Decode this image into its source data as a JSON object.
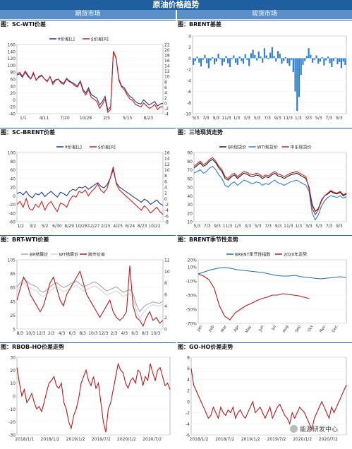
{
  "header": {
    "title": "原油价格趋势",
    "left": "期货市场",
    "right": "现货市场"
  },
  "watermark": "能源研发中心",
  "chart_data": [
    {
      "id": "c1",
      "type": "line",
      "title": "图：SC-WTI价差",
      "legend": [
        "¥价差[L]",
        "$价差[R]"
      ],
      "y_left_ticks": [
        160,
        140,
        120,
        100,
        80,
        60,
        40,
        20,
        0,
        -20,
        -40
      ],
      "y_right_ticks": [
        22,
        20,
        18,
        16,
        14,
        12,
        10,
        8,
        6,
        4,
        2,
        0,
        -2,
        -4
      ],
      "x_ticks": [
        "1/1",
        "4/11",
        "7/20",
        "10/28",
        "2/5",
        "5/15",
        "8/23"
      ],
      "series": [
        {
          "name": "¥价差[L]",
          "color": "#1f3a93",
          "axis": "left",
          "values": [
            72,
            75,
            65,
            80,
            68,
            60,
            75,
            58,
            65,
            70,
            60,
            55,
            66,
            50,
            58,
            60,
            52,
            48,
            62,
            55,
            50,
            45,
            40,
            55,
            30,
            20,
            35,
            15,
            10,
            5,
            -15,
            -5,
            10,
            -30,
            -20,
            138,
            120,
            60,
            40,
            35,
            20,
            10,
            5,
            -5,
            -10,
            -12,
            0,
            -8,
            -15,
            -10,
            -5,
            -18,
            -12,
            -10
          ]
        },
        {
          "name": "$价差[R]",
          "color": "#d22020",
          "axis": "right",
          "values": [
            11,
            11.5,
            10,
            12,
            10.5,
            9,
            11.5,
            8.5,
            10,
            10.5,
            9,
            8,
            10,
            7,
            8.5,
            9,
            7.5,
            7,
            9,
            8,
            7.5,
            6.5,
            6,
            8,
            4.5,
            3,
            5,
            2,
            1.5,
            0.5,
            -2,
            -0.5,
            1.5,
            -3.5,
            -2.5,
            19.5,
            17,
            8.5,
            6,
            5,
            3,
            1.5,
            1,
            -0.5,
            -1,
            -1.5,
            0,
            -1,
            -2,
            -1.5,
            -0.5,
            -2.5,
            -1.5,
            -1.5
          ]
        }
      ]
    },
    {
      "id": "c2",
      "type": "bar",
      "title": "图：BRENT基差",
      "y_ticks": [
        4,
        2,
        0,
        -2,
        -4,
        -6,
        -8,
        -10
      ],
      "x_ticks": [
        "5/3",
        "7/3",
        "9/3",
        "11/3",
        "1/3",
        "3/3",
        "5/3",
        "7/3",
        "9/3",
        "11/3",
        "1/3",
        "3/3",
        "5/3",
        "7/3",
        "9/3"
      ],
      "color": "#2f7fcf",
      "values": [
        -1.2,
        -0.5,
        0.3,
        -0.8,
        -1.5,
        -0.3,
        0.6,
        -0.9,
        -1.8,
        -0.4,
        0.2,
        -1.1,
        -0.6,
        0.8,
        -0.2,
        -1.3,
        -0.7,
        0.4,
        -0.9,
        -1.6,
        -0.2,
        0.5,
        -0.8,
        -1.2,
        0.3,
        -0.5,
        -1.0,
        0.7,
        -0.3,
        -1.4,
        0.9,
        1.5,
        0.6,
        -0.4,
        1.2,
        0.3,
        -0.8,
        1.8,
        0.5,
        -0.2,
        1.0,
        2.0,
        0.4,
        -0.6,
        1.3,
        0.8,
        -1.0,
        -0.5,
        0.2,
        -0.9,
        -1.4,
        -0.3,
        -2.5,
        -6.0,
        -9.5,
        -7.0,
        -3.0,
        -1.2,
        -0.5,
        0.4,
        1.8,
        0.6,
        -0.8,
        -0.3,
        0.5,
        -1.0,
        -0.6,
        0.2,
        -1.3,
        -0.4,
        0.3,
        -0.9,
        -1.6,
        -0.5,
        0.1,
        -1.1,
        -0.7,
        -1.8,
        -0.6,
        -1.2
      ]
    },
    {
      "id": "c3",
      "type": "line",
      "title": "图：SC-BRENT价差",
      "legend": [
        "¥价差[L]",
        "$价差[R]"
      ],
      "y_left_ticks": [
        100,
        80,
        60,
        40,
        20,
        0,
        -20,
        -40,
        -60
      ],
      "y_right_ticks": [
        16,
        14,
        12,
        10,
        8,
        6,
        4,
        2,
        0,
        -2,
        -4,
        -6,
        -8
      ],
      "x_ticks": [
        "1/2",
        "3/2",
        "5/2",
        "6/30",
        "8/29",
        "10/28",
        "12/27",
        "2/25",
        "4/25",
        "6/24",
        "8/23",
        "10/22"
      ],
      "series": [
        {
          "name": "¥价差[L]",
          "color": "#1f3a93",
          "axis": "left",
          "values": [
            5,
            8,
            2,
            10,
            0,
            -5,
            5,
            2,
            8,
            -2,
            5,
            10,
            3,
            -3,
            8,
            5,
            0,
            10,
            15,
            12,
            20,
            18,
            22,
            15,
            20,
            25,
            30,
            22,
            18,
            25,
            40,
            60,
            30,
            20,
            15,
            10,
            5,
            0,
            -5,
            -10,
            -15,
            -8,
            -12,
            -20,
            -15,
            -10,
            -18,
            -22
          ]
        },
        {
          "name": "$价差[R]",
          "color": "#d22020",
          "axis": "right",
          "values": [
            -2,
            -1,
            -3,
            0,
            -3.5,
            -4,
            -2,
            -3,
            -1,
            -4,
            -2,
            -1,
            -3,
            -4.5,
            -1.5,
            -2,
            -3,
            -0.5,
            1,
            0.5,
            2.5,
            2,
            3,
            1,
            2.5,
            3.5,
            5,
            3,
            2,
            3.5,
            7,
            11,
            5,
            3,
            2,
            1,
            0,
            -1,
            -2,
            -3,
            -4,
            -2.5,
            -3.5,
            -5,
            -4,
            -3,
            -4.5,
            -5.5
          ]
        }
      ]
    },
    {
      "id": "c4",
      "type": "line",
      "title": "图：三地现货走势",
      "legend": [
        "BR现货价",
        "WTI现货价",
        "中东现货价"
      ],
      "y_ticks": [
        90,
        80,
        70,
        60,
        50,
        40,
        30,
        20,
        10
      ],
      "x_ticks": [
        "5/3",
        "7/3",
        "9/3",
        "11/3",
        "1/3",
        "3/3",
        "5/3",
        "7/3",
        "9/3",
        "11/3",
        "1/3",
        "3/3",
        "5/3",
        "7/3",
        "9/3"
      ],
      "series": [
        {
          "name": "BR现货价",
          "color": "#1a1a1a",
          "values": [
            72,
            75,
            78,
            74,
            76,
            80,
            82,
            78,
            72,
            68,
            60,
            58,
            62,
            64,
            60,
            63,
            66,
            65,
            63,
            62,
            64,
            63,
            60,
            62,
            61,
            64,
            66,
            63,
            62,
            60,
            62,
            64,
            65,
            66,
            64,
            62,
            60,
            50,
            30,
            22,
            25,
            35,
            40,
            42,
            45,
            43,
            42,
            44,
            40,
            42
          ]
        },
        {
          "name": "WTI现货价",
          "color": "#2f7fcf",
          "values": [
            66,
            68,
            70,
            66,
            68,
            72,
            74,
            70,
            64,
            60,
            52,
            50,
            54,
            56,
            52,
            55,
            58,
            57,
            55,
            54,
            56,
            55,
            52,
            54,
            53,
            56,
            58,
            55,
            54,
            52,
            54,
            56,
            57,
            58,
            56,
            54,
            52,
            45,
            20,
            12,
            18,
            28,
            34,
            38,
            40,
            39,
            38,
            40,
            37,
            39
          ]
        },
        {
          "name": "中东现货价",
          "color": "#d22020",
          "values": [
            74,
            77,
            80,
            76,
            78,
            82,
            84,
            80,
            74,
            70,
            62,
            60,
            64,
            66,
            62,
            65,
            68,
            67,
            65,
            64,
            66,
            65,
            62,
            64,
            63,
            66,
            68,
            65,
            64,
            62,
            64,
            66,
            67,
            68,
            66,
            64,
            62,
            48,
            26,
            18,
            24,
            34,
            40,
            43,
            46,
            44,
            43,
            45,
            41,
            43
          ]
        }
      ]
    },
    {
      "id": "c5",
      "type": "line",
      "title": "图：BRT-WTI价差",
      "legend": [
        "BR结算价",
        "WT结算价",
        "跨市价差"
      ],
      "y_left_ticks": [
        105,
        85,
        65,
        45,
        25,
        5
      ],
      "y_right_ticks": [
        12,
        10,
        8,
        6,
        4,
        2,
        0
      ],
      "x_ticks": [
        "8/3",
        "10/3",
        "12/3",
        "2/3",
        "4/3",
        "6/3",
        "8/3",
        "10/3",
        "12/3",
        "2/3",
        "4/3",
        "6/3",
        "8/3",
        "10/3"
      ],
      "series": [
        {
          "name": "BR结算价",
          "color": "#a8a8a8",
          "axis": "left",
          "values": [
            65,
            72,
            78,
            74,
            70,
            68,
            66,
            60,
            58,
            62,
            66,
            70,
            72,
            68,
            65,
            67,
            70,
            72,
            74,
            70,
            66,
            68,
            70,
            73,
            72,
            68,
            64,
            60,
            62,
            64,
            66,
            62,
            58,
            60,
            62,
            56,
            40,
            30,
            36,
            40,
            42,
            44,
            43,
            42,
            45
          ]
        },
        {
          "name": "WT结算价",
          "color": "#cfd5e0",
          "axis": "left",
          "values": [
            60,
            66,
            72,
            68,
            64,
            62,
            60,
            54,
            52,
            56,
            60,
            64,
            66,
            62,
            59,
            61,
            64,
            66,
            68,
            64,
            60,
            62,
            64,
            67,
            66,
            62,
            58,
            54,
            56,
            58,
            60,
            56,
            52,
            54,
            56,
            50,
            32,
            20,
            28,
            34,
            38,
            40,
            39,
            38,
            41
          ]
        },
        {
          "name": "跨市价差",
          "color": "#c01818",
          "axis": "right",
          "values": [
            5,
            7,
            9,
            8,
            6,
            5,
            4,
            3,
            4,
            6,
            8,
            9,
            7,
            5,
            4,
            6,
            7,
            8,
            9,
            10,
            8,
            6,
            5,
            4,
            3,
            2,
            3,
            4,
            5,
            3,
            2,
            1.5,
            2,
            3,
            11,
            4,
            2,
            1.5,
            0.5,
            2,
            3,
            1.5,
            2,
            1,
            1.5
          ]
        }
      ]
    },
    {
      "id": "c6",
      "type": "line",
      "title": "图：BRENT季节性走势",
      "legend": [
        "BRENT季节性指数",
        "2020年走势"
      ],
      "y_ticks": [
        "20%",
        "10%",
        "-10%",
        "-30%",
        "-50%",
        "-70%"
      ],
      "y_values": [
        20,
        10,
        -10,
        -30,
        -50,
        -70
      ],
      "x_ticks": [
        "Jan",
        "Feb",
        "Mar",
        "Apr",
        "May",
        "Jun",
        "Jul",
        "Aug",
        "Sep",
        "Oct",
        "Nov",
        "Dec"
      ],
      "series": [
        {
          "name": "BRENT季节性指数",
          "color": "#1f6fb0",
          "values": [
            0,
            3,
            6,
            8,
            9,
            8,
            6,
            5,
            4,
            3,
            2,
            0,
            -2,
            -3,
            -3,
            -2,
            -4,
            -5,
            -6,
            -7,
            -6,
            -5,
            -4,
            -5
          ]
        },
        {
          "name": "2020年走势",
          "color": "#c01818",
          "values": [
            0,
            -3,
            -8,
            -20,
            -45,
            -60,
            -65,
            -55,
            -50,
            -45,
            -42,
            -38,
            -35,
            -33,
            -30,
            -30,
            -28,
            -29,
            -30,
            -31,
            -33,
            -35
          ]
        }
      ]
    },
    {
      "id": "c7",
      "type": "line",
      "title": "图：RBOB-HO价差走势",
      "y_ticks": [
        30,
        20,
        10,
        0,
        -10,
        -20,
        -30
      ],
      "x_ticks": [
        "2018/1/1",
        "2018/1/2",
        "2019/1/2",
        "2019/7/2",
        "2020/1/2",
        "2020/7/2"
      ],
      "color": "#c01818",
      "values": [
        22,
        10,
        0,
        5,
        -5,
        -2,
        2,
        -5,
        -10,
        -8,
        -12,
        -5,
        3,
        10,
        12,
        15,
        8,
        6,
        10,
        -5,
        -10,
        -20,
        -25,
        -15,
        -10,
        -2,
        10,
        15,
        20,
        12,
        8,
        15,
        6,
        10,
        -5,
        -20,
        -28,
        -10,
        -5,
        5,
        15,
        25,
        20,
        18,
        10,
        6,
        12,
        14,
        10,
        20,
        18,
        8,
        15,
        12,
        25,
        18,
        12,
        20,
        22,
        15,
        8,
        10,
        5
      ]
    },
    {
      "id": "c8",
      "type": "line",
      "title": "图：GO-HO价差走势",
      "y_ticks": [
        8,
        6,
        4,
        2,
        0,
        -2,
        -4,
        -6
      ],
      "x_ticks": [
        "2018/1/2",
        "2018/7/2",
        "2019/1/2",
        "2019/7/2",
        "2020/1/2",
        "2020/7/2"
      ],
      "color": "#c01818",
      "values": [
        6,
        3,
        2,
        1,
        0,
        -1,
        -2,
        -3,
        -2.5,
        -1,
        -2,
        -3,
        -1,
        -2,
        -2.5,
        -1.5,
        -2,
        -1,
        -3,
        -2,
        -1.5,
        -2.5,
        -3,
        -2,
        -1,
        0,
        -2,
        -1.5,
        -1,
        -2,
        -3,
        -2,
        -1,
        -3,
        -2,
        -1,
        -0.5,
        -1.5,
        -2.5,
        -3,
        -4,
        -2,
        -3,
        -2,
        -1,
        -1.5,
        -2,
        -3,
        -4,
        -5,
        -3,
        -2,
        -1,
        0,
        -1,
        -2,
        -3,
        -1,
        -2,
        -1,
        0,
        1,
        2,
        3
      ]
    }
  ]
}
